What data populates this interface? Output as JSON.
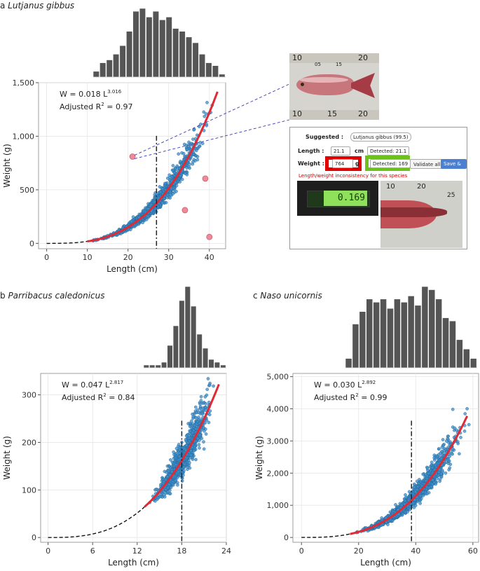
{
  "colors": {
    "point": "#3d8fcc",
    "point_edge": "#1f5f8f",
    "curve": "#e02a35",
    "hist_bar": "#555555",
    "outlier": "#f08a9a",
    "highlight_red": "#e00000",
    "highlight_green": "#6cc11c",
    "save_button": "#4d7fd1"
  },
  "panels": {
    "a": {
      "letter": "a",
      "species": "Lutjanus gibbus"
    },
    "b": {
      "letter": "b",
      "species": "Parribacus caledonicus"
    },
    "c": {
      "letter": "c",
      "species": "Naso unicornis"
    }
  },
  "ui": {
    "suggested_label": "Suggested :",
    "suggested_value": "Lutjanus gibbus (99.5)",
    "length_label": "Length :",
    "length_value": "21.1",
    "length_unit": "cm",
    "length_detected": "Detected: 21.1",
    "weight_label": "Weight :",
    "weight_value": "764",
    "weight_unit": "g",
    "weight_detected": "Detected: 169",
    "validate_label": "Validate all",
    "save_label": "Save & Next",
    "warning": "Length/weight inconsistency for this species",
    "scale_display": "0.169",
    "ruler_top": [
      "10",
      "05",
      "15",
      "20"
    ],
    "ruler_bottom": [
      "10",
      "15",
      "20"
    ],
    "ruler_crop": [
      "10",
      "20",
      "25"
    ]
  },
  "chart_data": [
    {
      "id": "a",
      "type": "scatter",
      "title": "a Lutjanus gibbus",
      "xlabel": "Length (cm)",
      "ylabel": "Weight (g)",
      "xlim": [
        -2,
        44
      ],
      "ylim": [
        -50,
        1500
      ],
      "xticks": [
        0,
        10,
        20,
        30,
        40
      ],
      "yticks": [
        0,
        500,
        1000,
        1500
      ],
      "ytick_labels": [
        "0",
        "500",
        "1,000",
        "1,500"
      ],
      "grid": true,
      "fit": {
        "a": 0.018,
        "b": 3.016,
        "x_range": [
          10,
          42
        ],
        "extrapolated_from": 0
      },
      "equation": {
        "text": "W = 0.018 L",
        "exponent": "3.016"
      },
      "r2": {
        "text": "Adjusted R",
        "sup": "2",
        "value": " = 0.97"
      },
      "mean_length": 27,
      "scatter": {
        "n": 1300,
        "x_range": [
          10,
          42
        ],
        "spread": 0.09,
        "seed": 11
      },
      "outliers": [
        {
          "x": 21.1,
          "y": 810
        },
        {
          "x": 39,
          "y": 605
        },
        {
          "x": 34,
          "y": 310
        },
        {
          "x": 40,
          "y": 60
        }
      ],
      "histogram": [
        2,
        5,
        6,
        8,
        11,
        16,
        23,
        24,
        21,
        23,
        20,
        21,
        17,
        16,
        14,
        12,
        8,
        5,
        4,
        1
      ]
    },
    {
      "id": "b",
      "type": "scatter",
      "title": "b Parribacus caledonicus",
      "xlabel": "Length (cm)",
      "ylabel": "Weight (g)",
      "xlim": [
        -1,
        24
      ],
      "ylim": [
        -10,
        345
      ],
      "xticks": [
        0,
        6,
        12,
        18,
        24
      ],
      "yticks": [
        0,
        100,
        200,
        300
      ],
      "ytick_labels": [
        "0",
        "100",
        "200",
        "300"
      ],
      "grid": true,
      "fit": {
        "a": 0.047,
        "b": 2.817,
        "x_range": [
          13,
          23
        ],
        "extrapolated_from": 0
      },
      "equation": {
        "text": "W = 0.047 L",
        "exponent": "2.817"
      },
      "r2": {
        "text": "Adjusted R",
        "sup": "2",
        "value": " = 0.84"
      },
      "mean_length": 18,
      "scatter": {
        "n": 1000,
        "x_range": [
          13.2,
          23
        ],
        "spread": 0.1,
        "seed": 23
      },
      "histogram": [
        1,
        1,
        1,
        2,
        8,
        15,
        24,
        29,
        22,
        12,
        7,
        3,
        2,
        1
      ]
    },
    {
      "id": "c",
      "type": "scatter",
      "title": "c Naso unicornis",
      "xlabel": "Length (cm)",
      "ylabel": "Weight (g)",
      "xlim": [
        -3,
        62
      ],
      "ylim": [
        -150,
        5100
      ],
      "xticks": [
        0,
        20,
        40,
        60
      ],
      "yticks": [
        0,
        1000,
        2000,
        3000,
        4000,
        5000
      ],
      "ytick_labels": [
        "0",
        "1,000",
        "2,000",
        "3,000",
        "4,000",
        "5,000"
      ],
      "grid": true,
      "fit": {
        "a": 0.03,
        "b": 2.892,
        "x_range": [
          17,
          58
        ],
        "extrapolated_from": 0
      },
      "equation": {
        "text": "W = 0.030 L",
        "exponent": "2.892"
      },
      "r2": {
        "text": "Adjusted R",
        "sup": "2",
        "value": " = 0.99"
      },
      "mean_length": 38.5,
      "scatter": {
        "n": 1500,
        "x_range": [
          17,
          60
        ],
        "spread": 0.1,
        "seed": 37
      },
      "histogram": [
        3,
        14,
        18,
        22,
        21,
        22,
        19,
        22,
        21,
        23,
        20,
        26,
        25,
        22,
        16,
        15,
        9,
        6,
        3
      ]
    }
  ]
}
